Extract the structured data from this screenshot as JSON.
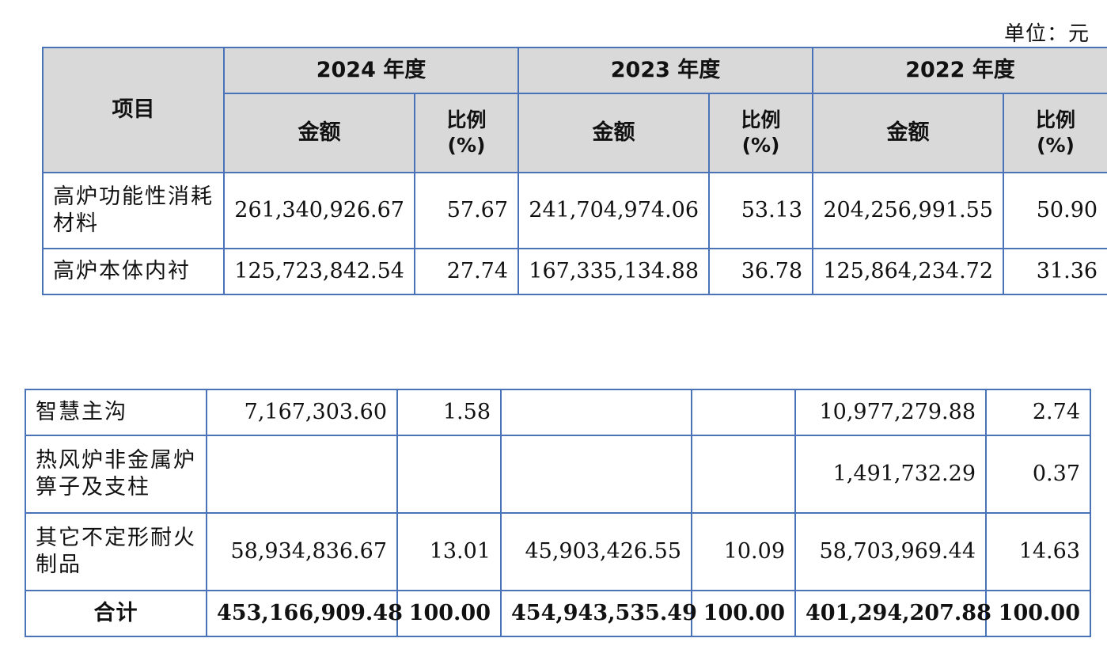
{
  "unit_label": "单位：元",
  "header": {
    "item": "项目",
    "years": [
      "2024 年度",
      "2023 年度",
      "2022 年度"
    ],
    "amount": "金额",
    "ratio_line1": "比例",
    "ratio_line2": "(%)"
  },
  "top_rows": [
    {
      "label": "高炉功能性消耗材料",
      "values": [
        "261,340,926.67",
        "57.67",
        "241,704,974.06",
        "53.13",
        "204,256,991.55",
        "50.90"
      ]
    },
    {
      "label": "高炉本体内衬",
      "values": [
        "125,723,842.54",
        "27.74",
        "167,335,134.88",
        "36.78",
        "125,864,234.72",
        "31.36"
      ]
    }
  ],
  "bottom_rows": [
    {
      "label": "智慧主沟",
      "values": [
        "7,167,303.60",
        "1.58",
        "",
        "",
        "10,977,279.88",
        "2.74"
      ]
    },
    {
      "label": "热风炉非金属炉箅子及支柱",
      "values": [
        "",
        "",
        "",
        "",
        "1,491,732.29",
        "0.37"
      ]
    },
    {
      "label": "其它不定形耐火制品",
      "values": [
        "58,934,836.67",
        "13.01",
        "45,903,426.55",
        "10.09",
        "58,703,969.44",
        "14.63"
      ]
    }
  ],
  "total": {
    "label": "合计",
    "values": [
      "453,166,909.48",
      "100.00",
      "454,943,535.49",
      "100.00",
      "401,294,207.88",
      "100.00"
    ]
  }
}
